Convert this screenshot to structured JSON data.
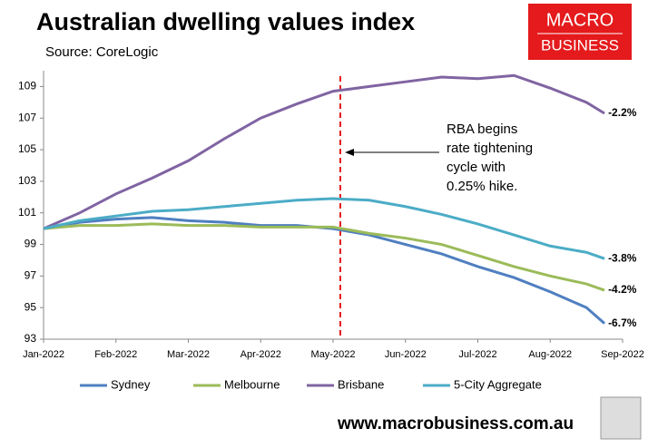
{
  "chart_data": {
    "type": "line",
    "title": "Australian dwelling values index",
    "subtitle": "Source: CoreLogic",
    "logo": [
      "MACRO",
      "BUSINESS"
    ],
    "footer": "www.macrobusiness.com.au",
    "annotation": [
      "RBA begins",
      "rate tightening",
      "cycle with",
      "0.25% hike."
    ],
    "event_x": 4.1,
    "event_color": "#e41a1c",
    "x": [
      0,
      0.5,
      1,
      1.5,
      2,
      2.5,
      3,
      3.5,
      4,
      4.5,
      5,
      5.5,
      6,
      6.5,
      7,
      7.5,
      7.75
    ],
    "xlim": [
      0,
      8
    ],
    "xticks": [
      {
        "value": 0,
        "label": "Jan-2022"
      },
      {
        "value": 1,
        "label": "Feb-2022"
      },
      {
        "value": 2,
        "label": "Mar-2022"
      },
      {
        "value": 3,
        "label": "Apr-2022"
      },
      {
        "value": 4,
        "label": "May-2022"
      },
      {
        "value": 5,
        "label": "Jun-2022"
      },
      {
        "value": 6,
        "label": "Jul-2022"
      },
      {
        "value": 7,
        "label": "Aug-2022"
      },
      {
        "value": 8,
        "label": "Sep-2022"
      }
    ],
    "ylim": [
      93,
      110
    ],
    "yticks": [
      93,
      95,
      97,
      99,
      101,
      103,
      105,
      107,
      109
    ],
    "series": [
      {
        "name": "Sydney",
        "color": "#4f7fc0",
        "end_label": "-6.7%",
        "values": [
          100,
          100.4,
          100.6,
          100.7,
          100.5,
          100.4,
          100.2,
          100.2,
          100.0,
          99.6,
          99.0,
          98.4,
          97.6,
          96.9,
          96.0,
          95.0,
          94.0
        ]
      },
      {
        "name": "Melbourne",
        "color": "#9bbb59",
        "end_label": "-4.2%",
        "values": [
          100,
          100.2,
          100.2,
          100.3,
          100.2,
          100.2,
          100.1,
          100.1,
          100.1,
          99.7,
          99.4,
          99.0,
          98.3,
          97.6,
          97.0,
          96.5,
          96.1
        ]
      },
      {
        "name": "Brisbane",
        "color": "#8064a2",
        "end_label": "-2.2%",
        "values": [
          100,
          101.0,
          102.2,
          103.2,
          104.3,
          105.7,
          107.0,
          107.9,
          108.7,
          109.0,
          109.3,
          109.6,
          109.5,
          109.7,
          108.9,
          108.0,
          107.3
        ]
      },
      {
        "name": "5-City Aggregate",
        "color": "#4bacc6",
        "end_label": "-3.8%",
        "values": [
          100,
          100.5,
          100.8,
          101.1,
          101.2,
          101.4,
          101.6,
          101.8,
          101.9,
          101.8,
          101.4,
          100.9,
          100.3,
          99.6,
          98.9,
          98.5,
          98.1
        ]
      }
    ]
  }
}
